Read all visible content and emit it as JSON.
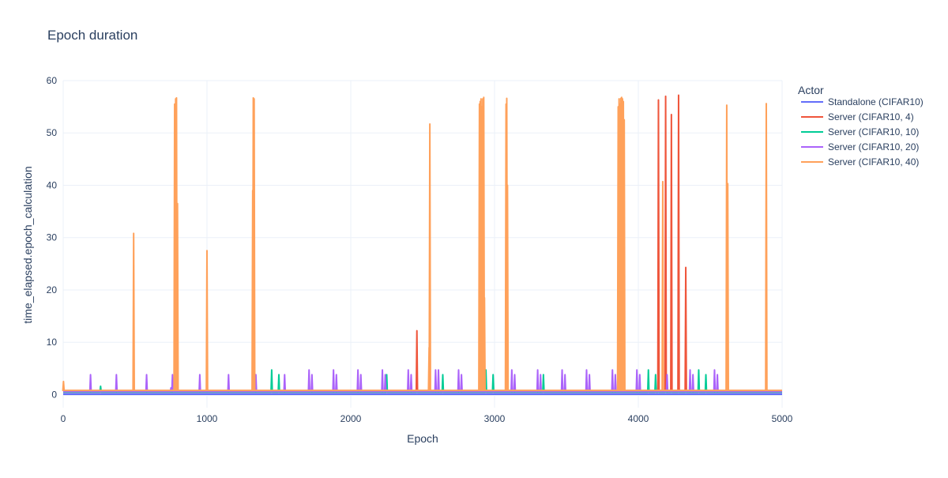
{
  "chart_data": {
    "type": "line",
    "title": "Epoch duration",
    "xlabel": "Epoch",
    "ylabel": "time_elapsed.epoch_calculation",
    "xlim": [
      0,
      5000
    ],
    "ylim": [
      -2.5,
      60
    ],
    "x_ticks": [
      0,
      1000,
      2000,
      3000,
      4000,
      5000
    ],
    "x_tick_labels": [
      "0",
      "1000",
      "2000",
      "3000",
      "4000",
      "5000"
    ],
    "y_ticks": [
      0,
      10,
      20,
      30,
      40,
      50,
      60
    ],
    "y_tick_labels": [
      "0",
      "10",
      "20",
      "30",
      "40",
      "50",
      "60"
    ],
    "grid": true,
    "legend_position": "right",
    "legend_title": "Actor",
    "series": [
      {
        "name": "Standalone (CIFAR10)",
        "color": "#636efa",
        "baseline": 0.1,
        "spikes": []
      },
      {
        "name": "Server (CIFAR10, 4)",
        "color": "#EF553B",
        "baseline": 0.5,
        "spikes": [
          [
            2460,
            12.2
          ],
          [
            4140,
            56.3
          ],
          [
            4190,
            57.0
          ],
          [
            4230,
            53.5
          ],
          [
            4280,
            57.2
          ],
          [
            4330,
            24.3
          ]
        ]
      },
      {
        "name": "Server (CIFAR10, 10)",
        "color": "#00cc96",
        "baseline": 0.5,
        "spikes": [
          [
            260,
            1.6
          ],
          [
            1450,
            4.7
          ],
          [
            1500,
            3.8
          ],
          [
            2250,
            3.8
          ],
          [
            2640,
            3.8
          ],
          [
            2940,
            4.7
          ],
          [
            2990,
            3.8
          ],
          [
            3340,
            3.8
          ],
          [
            4070,
            4.7
          ],
          [
            4120,
            3.8
          ],
          [
            4420,
            4.7
          ],
          [
            4470,
            3.8
          ]
        ]
      },
      {
        "name": "Server (CIFAR10, 20)",
        "color": "#ab63fa",
        "baseline": 0.6,
        "spikes": [
          [
            190,
            3.8
          ],
          [
            370,
            3.8
          ],
          [
            580,
            3.8
          ],
          [
            750,
            1.3
          ],
          [
            760,
            3.8
          ],
          [
            950,
            3.8
          ],
          [
            1150,
            3.8
          ],
          [
            1340,
            3.8
          ],
          [
            1540,
            3.8
          ],
          [
            1710,
            4.7
          ],
          [
            1730,
            3.8
          ],
          [
            1880,
            4.7
          ],
          [
            1900,
            3.8
          ],
          [
            2050,
            4.7
          ],
          [
            2070,
            3.8
          ],
          [
            2220,
            4.7
          ],
          [
            2240,
            3.8
          ],
          [
            2400,
            4.7
          ],
          [
            2420,
            3.8
          ],
          [
            2590,
            4.7
          ],
          [
            2610,
            4.7
          ],
          [
            2750,
            4.7
          ],
          [
            2770,
            3.8
          ],
          [
            3120,
            4.7
          ],
          [
            3140,
            3.8
          ],
          [
            3300,
            4.7
          ],
          [
            3320,
            3.8
          ],
          [
            3470,
            4.7
          ],
          [
            3490,
            3.8
          ],
          [
            3640,
            4.7
          ],
          [
            3660,
            3.8
          ],
          [
            3820,
            4.7
          ],
          [
            3840,
            3.8
          ],
          [
            3990,
            4.7
          ],
          [
            4010,
            3.8
          ],
          [
            4200,
            3.8
          ],
          [
            4360,
            4.7
          ],
          [
            4380,
            3.8
          ],
          [
            4530,
            4.7
          ],
          [
            4550,
            3.8
          ]
        ]
      },
      {
        "name": "Server (CIFAR10, 40)",
        "color": "#FFA15A",
        "baseline": 0.8,
        "spikes": [
          [
            2,
            2.5
          ],
          [
            490,
            30.8
          ],
          [
            775,
            55.5
          ],
          [
            782,
            56.5
          ],
          [
            788,
            56.7
          ],
          [
            795,
            36.5
          ],
          [
            1000,
            27.5
          ],
          [
            1318,
            39.0
          ],
          [
            1322,
            56.7
          ],
          [
            1328,
            56.5
          ],
          [
            2545,
            9.0
          ],
          [
            2550,
            51.7
          ],
          [
            2895,
            55.5
          ],
          [
            2900,
            56.0
          ],
          [
            2906,
            56.5
          ],
          [
            2912,
            55.0
          ],
          [
            2918,
            56.5
          ],
          [
            2925,
            56.8
          ],
          [
            2930,
            18.5
          ],
          [
            3080,
            55.5
          ],
          [
            3085,
            56.6
          ],
          [
            3090,
            40.0
          ],
          [
            3860,
            55.0
          ],
          [
            3866,
            56.5
          ],
          [
            3872,
            55.5
          ],
          [
            3878,
            56.6
          ],
          [
            3884,
            56.8
          ],
          [
            3890,
            56.5
          ],
          [
            3896,
            56.0
          ],
          [
            3902,
            52.5
          ],
          [
            4170,
            40.7
          ],
          [
            4615,
            55.3
          ],
          [
            4622,
            40.3
          ],
          [
            4890,
            55.6
          ]
        ]
      }
    ]
  }
}
